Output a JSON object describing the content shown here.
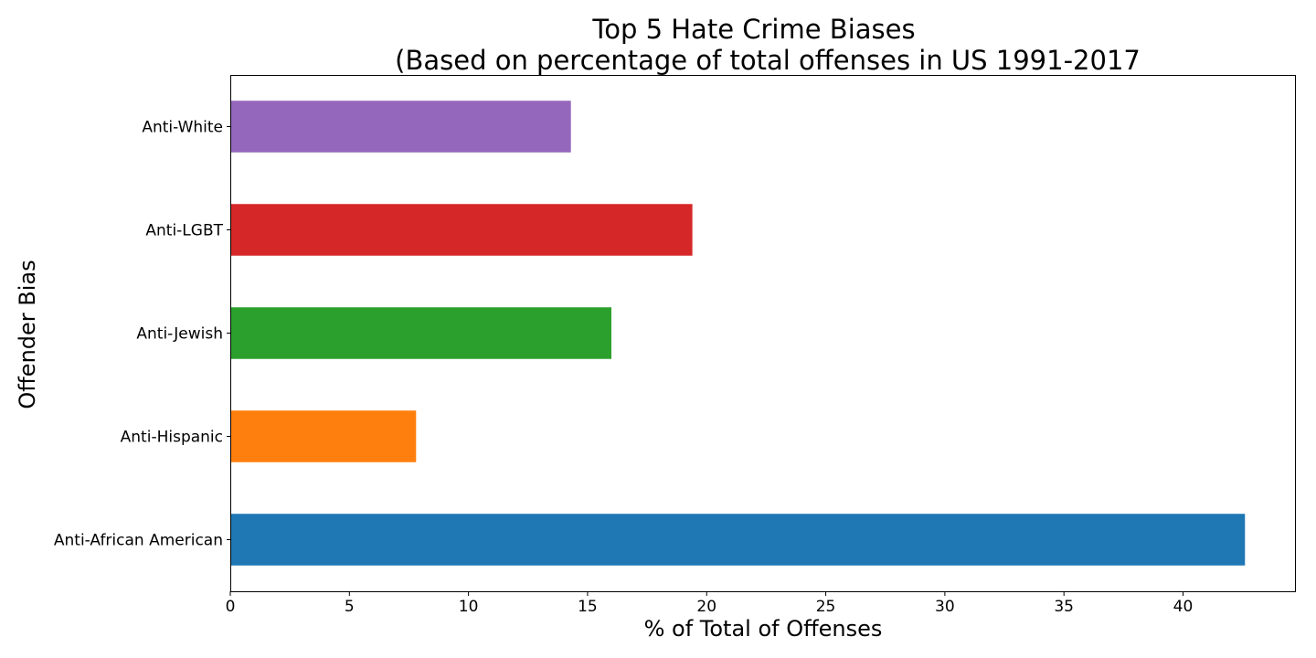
{
  "chart_data": {
    "type": "bar",
    "orientation": "horizontal",
    "title": [
      "Top 5 Hate Crime Biases",
      "(Based on percentage of total offenses in US 1991-2017"
    ],
    "xlabel": "% of Total of Offenses",
    "ylabel": "Offender Bias",
    "categories": [
      "Anti-African American",
      "Anti-Hispanic",
      "Anti-Jewish",
      "Anti-LGBT",
      "Anti-White"
    ],
    "values": [
      42.6,
      7.8,
      16.0,
      19.4,
      14.3
    ],
    "colors": [
      "#1f77b4",
      "#ff7f0e",
      "#2ca02c",
      "#d62728",
      "#9467bd"
    ],
    "xticks": [
      0,
      5,
      10,
      15,
      20,
      25,
      30,
      35,
      40
    ],
    "xlim": [
      0,
      44.7
    ],
    "grid": false,
    "legend": "none"
  }
}
